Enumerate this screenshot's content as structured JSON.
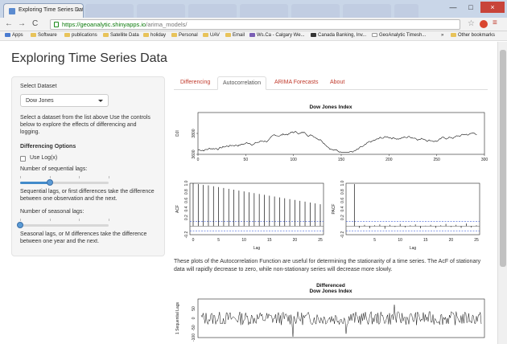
{
  "browser": {
    "tab_title": "Exploring Time Series Dat",
    "tab_close": "×",
    "url_host": "https://geoanalytic.shinyapps.io",
    "url_path": "/arima_models/",
    "nav": [
      "←",
      "→",
      "C"
    ],
    "window_controls": [
      "—",
      "□",
      "×"
    ],
    "bookmarks": [
      "Apps",
      "Software",
      "publications",
      "Satellite Data",
      "holiday",
      "Personal",
      "UAV",
      "Email",
      "Ws.Ca - Calgary We...",
      "Canada Banking, Inv...",
      "GeoAnalytic Timesh...",
      "»",
      "Other bookmarks"
    ]
  },
  "app": {
    "title": "Exploring Time Series Data",
    "sidebar": {
      "select_label": "Select Dataset",
      "dataset_value": "Dow Jones",
      "intro": "Select a dataset from the list above Use the controls below to explore the effects of differencing and logging.",
      "options_heading": "Differencing Options",
      "log_label": "Use Log(x)",
      "seq_label": "Number of sequential lags:",
      "seq_value": 1,
      "seq_help": "Sequential lags, or first differences take the difference between one observation and the next.",
      "seas_label": "Number of seasonal lags:",
      "seas_value": 0,
      "seas_help": "Seasonal lags, or M differences take the difference between one year and the next."
    },
    "tabs": [
      "Differencing",
      "Autocorrelation",
      "ARIMA Forecasts",
      "About"
    ],
    "active_tab": "Autocorrelation",
    "description": "These plots of the Autocorrelation Function are useful for determining the stationarity of a time series. The AcF of stationary data will rapidly decrease to zero, while non-stationary series will decrease more slowly."
  },
  "chart_data": [
    {
      "type": "line",
      "title": "Dow Jones Index",
      "ylabel": "DJI",
      "xlim": [
        0,
        300
      ],
      "x_ticks": [
        0,
        50,
        100,
        150,
        200,
        250,
        300
      ],
      "ylim": [
        3600,
        4000
      ],
      "y_ticks": [
        3600,
        3800
      ],
      "y_tick_labels": [
        "3600",
        "3800"
      ]
    },
    {
      "type": "bar",
      "xlabel": "Lag",
      "ylabel": "ACF",
      "x_ticks": [
        0,
        5,
        10,
        15,
        20,
        25
      ],
      "y_ticks": [
        -0.2,
        0.2,
        0.4,
        0.6,
        0.8,
        1.0
      ],
      "y_tick_labels": [
        "-0.2",
        "0.2",
        "0.4",
        "0.6",
        "0.8",
        "1.0"
      ],
      "ylim": [
        -0.2,
        1.0
      ],
      "x": [
        0,
        1,
        2,
        3,
        4,
        5,
        6,
        7,
        8,
        9,
        10,
        11,
        12,
        13,
        14,
        15,
        16,
        17,
        18,
        19,
        20,
        21,
        22,
        23,
        24,
        25
      ],
      "values": [
        1.0,
        0.98,
        0.96,
        0.95,
        0.93,
        0.91,
        0.89,
        0.87,
        0.85,
        0.83,
        0.81,
        0.79,
        0.77,
        0.75,
        0.73,
        0.71,
        0.69,
        0.67,
        0.65,
        0.63,
        0.61,
        0.59,
        0.57,
        0.55,
        0.53,
        0.51
      ],
      "ci": 0.11
    },
    {
      "type": "bar",
      "xlabel": "Lag",
      "ylabel": "PACF",
      "x_ticks": [
        5,
        10,
        15,
        20,
        25
      ],
      "y_ticks": [
        -0.2,
        0.2,
        0.4,
        0.6,
        0.8,
        1.0
      ],
      "y_tick_labels": [
        "-0.2",
        "0.2",
        "0.4",
        "0.6",
        "0.8",
        "1.0"
      ],
      "ylim": [
        -0.2,
        1.0
      ],
      "x": [
        1,
        2,
        3,
        4,
        5,
        6,
        7,
        8,
        9,
        10,
        11,
        12,
        13,
        14,
        15,
        16,
        17,
        18,
        19,
        20,
        21,
        22,
        23,
        24,
        25
      ],
      "values": [
        0.98,
        -0.04,
        0.03,
        -0.05,
        0.02,
        0.04,
        -0.06,
        0.03,
        -0.02,
        0.05,
        -0.03,
        0.02,
        0.04,
        -0.05,
        0.01,
        0.03,
        -0.04,
        0.02,
        0.05,
        -0.02,
        0.03,
        -0.04,
        0.06,
        -0.03,
        0.02
      ],
      "ci": 0.11
    },
    {
      "type": "line",
      "title": "Differenced\nDow Jones Index",
      "ylabel": "1 Sequential Lags",
      "ylim": [
        -100,
        100
      ],
      "y_ticks": [
        -100,
        -50,
        0,
        50
      ],
      "y_tick_labels": [
        "-100",
        "-50",
        "0",
        "50"
      ]
    }
  ]
}
